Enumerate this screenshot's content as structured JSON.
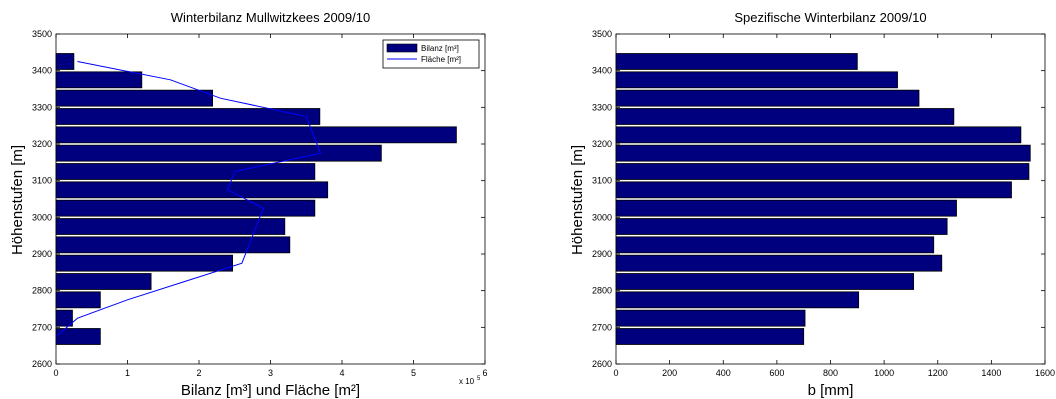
{
  "chart_data": [
    {
      "type": "bar",
      "orientation": "horizontal",
      "title": "Winterbilanz Mullwitzkees 2009/10",
      "xlabel": "Bilanz [m³] und Fläche [m²]",
      "ylabel": "Höhenstufen [m]",
      "x_multiplier": "x 10",
      "x_exponent": "5",
      "xlim": [
        0,
        6
      ],
      "ylim": [
        2600,
        3500
      ],
      "xticks": [
        "0",
        "1",
        "2",
        "3",
        "4",
        "5",
        "6"
      ],
      "yticks": [
        "2600",
        "2700",
        "2800",
        "2900",
        "3000",
        "3100",
        "3200",
        "3300",
        "3400",
        "3500"
      ],
      "legend_position": "top-right",
      "bar_color": "#00007f",
      "line_color": "#0000ff",
      "categories": [
        2675,
        2725,
        2775,
        2825,
        2875,
        2925,
        2975,
        3025,
        3075,
        3125,
        3175,
        3225,
        3275,
        3325,
        3375,
        3425
      ],
      "series": [
        {
          "name": "Bilanz [m³]",
          "kind": "bar",
          "values": [
            0.62,
            0.23,
            0.62,
            1.33,
            2.47,
            3.27,
            3.2,
            3.62,
            3.8,
            3.62,
            4.55,
            5.6,
            3.69,
            2.19,
            1.2,
            0.25
          ]
        },
        {
          "name": "Fläche [m²]",
          "kind": "line",
          "points": [
            [
              0.0,
              2675
            ],
            [
              0.3,
              2725
            ],
            [
              1.0,
              2775
            ],
            [
              1.8,
              2825
            ],
            [
              2.6,
              2875
            ],
            [
              2.7,
              2925
            ],
            [
              2.8,
              2975
            ],
            [
              2.9,
              3025
            ],
            [
              2.4,
              3075
            ],
            [
              2.5,
              3125
            ],
            [
              3.7,
              3175
            ],
            [
              3.6,
              3225
            ],
            [
              3.5,
              3275
            ],
            [
              2.3,
              3325
            ],
            [
              1.6,
              3375
            ],
            [
              0.3,
              3425
            ]
          ]
        }
      ]
    },
    {
      "type": "bar",
      "orientation": "horizontal",
      "title": "Spezifische Winterbilanz 2009/10",
      "xlabel": "b [mm]",
      "ylabel": "Höhenstufen [m]",
      "xlim": [
        0,
        1600
      ],
      "ylim": [
        2600,
        3500
      ],
      "xticks": [
        "0",
        "200",
        "400",
        "600",
        "800",
        "1000",
        "1200",
        "1400",
        "1600"
      ],
      "yticks": [
        "2600",
        "2700",
        "2800",
        "2900",
        "3000",
        "3100",
        "3200",
        "3300",
        "3400",
        "3500"
      ],
      "bar_color": "#00007f",
      "categories": [
        2675,
        2725,
        2775,
        2825,
        2875,
        2925,
        2975,
        3025,
        3075,
        3125,
        3175,
        3225,
        3275,
        3325,
        3375,
        3425
      ],
      "values": [
        700,
        705,
        905,
        1110,
        1215,
        1185,
        1235,
        1270,
        1475,
        1540,
        1545,
        1510,
        1260,
        1130,
        1050,
        900
      ]
    }
  ]
}
